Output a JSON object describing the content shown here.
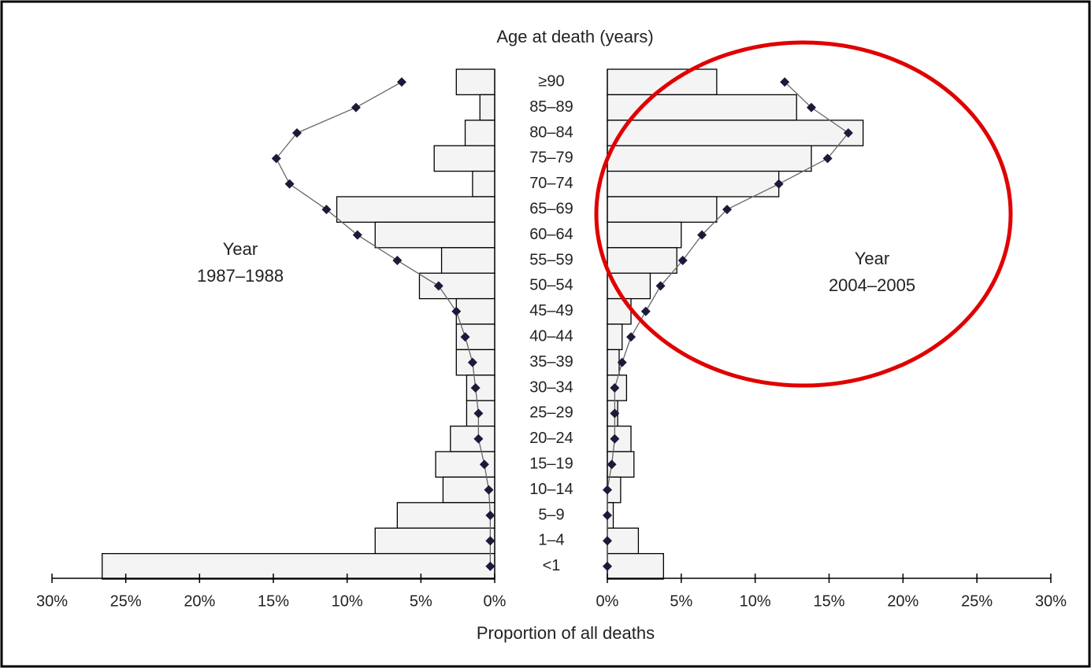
{
  "chart_data": {
    "type": "pyramid",
    "title": "Age at death (years)",
    "x_label": "Proportion of all deaths",
    "categories": [
      "≥90",
      "85–89",
      "80–84",
      "75–79",
      "70–74",
      "65–69",
      "60–64",
      "55–59",
      "50–54",
      "45–49",
      "40–44",
      "35–39",
      "30–34",
      "25–29",
      "20–24",
      "15–19",
      "10–14",
      "5–9",
      "1–4",
      "<1"
    ],
    "series": [
      {
        "name": [
          "Year",
          "1987–1988"
        ],
        "side": "left",
        "bar_color": "#f4f4f4",
        "line_color": "#666666",
        "marker_color": "#1a1a3a",
        "bar_values": [
          2.6,
          1.0,
          2.0,
          4.1,
          1.5,
          10.7,
          8.1,
          3.6,
          5.1,
          2.6,
          2.6,
          2.6,
          1.9,
          1.9,
          3.0,
          4.0,
          3.5,
          6.6,
          8.1,
          26.6
        ],
        "line_values": [
          6.3,
          9.4,
          13.4,
          14.8,
          13.9,
          11.4,
          9.3,
          6.6,
          3.8,
          2.6,
          2.0,
          1.5,
          1.3,
          1.1,
          1.1,
          0.7,
          0.4,
          0.3,
          0.3,
          0.3
        ],
        "xlim": [
          0,
          30
        ],
        "xticks": [
          {
            "value": 0,
            "label": "0%"
          },
          {
            "value": 5,
            "label": "5%"
          },
          {
            "value": 10,
            "label": "10%"
          },
          {
            "value": 15,
            "label": "15%"
          },
          {
            "value": 20,
            "label": "20%"
          },
          {
            "value": 25,
            "label": "25%"
          },
          {
            "value": 30,
            "label": "30%"
          }
        ]
      },
      {
        "name": [
          "Year",
          "2004–2005"
        ],
        "side": "right",
        "bar_color": "#f4f4f4",
        "line_color": "#666666",
        "marker_color": "#1a1a3a",
        "bar_values": [
          7.4,
          12.8,
          17.3,
          13.8,
          11.6,
          7.4,
          5.0,
          4.7,
          2.9,
          1.6,
          1.0,
          0.8,
          1.3,
          0.7,
          1.6,
          1.8,
          0.9,
          0.4,
          2.1,
          3.8
        ],
        "line_values": [
          12.0,
          13.8,
          16.3,
          14.9,
          11.6,
          8.1,
          6.4,
          5.1,
          3.6,
          2.6,
          1.6,
          1.0,
          0.5,
          0.5,
          0.5,
          0.3,
          0,
          0,
          0,
          0
        ],
        "xlim": [
          0,
          30
        ],
        "xticks": [
          {
            "value": 0,
            "label": "0%"
          },
          {
            "value": 5,
            "label": "5%"
          },
          {
            "value": 10,
            "label": "10%"
          },
          {
            "value": 15,
            "label": "15%"
          },
          {
            "value": 20,
            "label": "20%"
          },
          {
            "value": 25,
            "label": "25%"
          },
          {
            "value": 30,
            "label": "30%"
          }
        ]
      }
    ]
  }
}
